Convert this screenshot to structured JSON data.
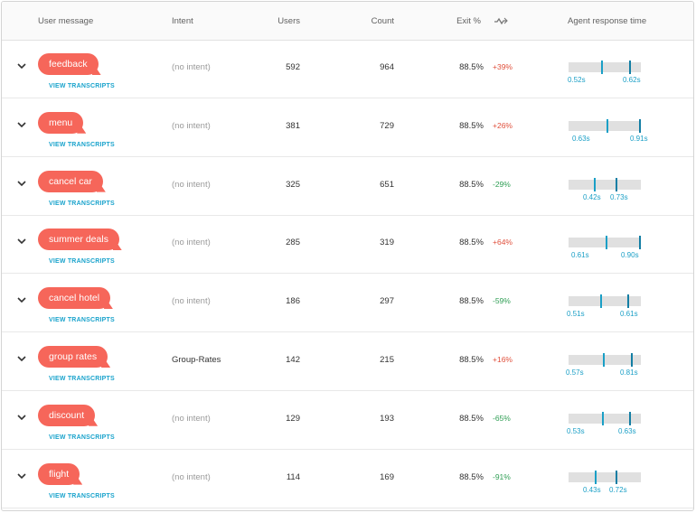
{
  "header": {
    "user_message": "User message",
    "intent": "Intent",
    "users": "Users",
    "count": "Count",
    "exit": "Exit %",
    "trend_icon": "trend-arrow-icon",
    "agent_response_time": "Agent response time"
  },
  "view_transcripts_label": "VIEW TRANSCRIPTS",
  "colors": {
    "bubble": "#f6665a",
    "link": "#1aa3cc",
    "positive_delta": "#e0503c",
    "negative_delta": "#2f9e54",
    "tick": "#1a9fc6"
  },
  "rows": [
    {
      "message": "feedback",
      "intent": "(no intent)",
      "users": "592",
      "count": "964",
      "exit": "88.5%",
      "delta": "+39%",
      "rt_low": "0.52s",
      "rt_high": "0.62s"
    },
    {
      "message": "menu",
      "intent": "(no intent)",
      "users": "381",
      "count": "729",
      "exit": "88.5%",
      "delta": "+26%",
      "rt_low": "0.63s",
      "rt_high": "0.91s"
    },
    {
      "message": "cancel car",
      "intent": "(no intent)",
      "users": "325",
      "count": "651",
      "exit": "88.5%",
      "delta": "-29%",
      "rt_low": "0.42s",
      "rt_high": "0.73s"
    },
    {
      "message": "summer deals",
      "intent": "(no intent)",
      "users": "285",
      "count": "319",
      "exit": "88.5%",
      "delta": "+64%",
      "rt_low": "0.61s",
      "rt_high": "0.90s"
    },
    {
      "message": "cancel hotel",
      "intent": "(no intent)",
      "users": "186",
      "count": "297",
      "exit": "88.5%",
      "delta": "-59%",
      "rt_low": "0.51s",
      "rt_high": "0.61s"
    },
    {
      "message": "group rates",
      "intent": "Group-Rates",
      "users": "142",
      "count": "215",
      "exit": "88.5%",
      "delta": "+16%",
      "rt_low": "0.57s",
      "rt_high": "0.81s"
    },
    {
      "message": "discount",
      "intent": "(no intent)",
      "users": "129",
      "count": "193",
      "exit": "88.5%",
      "delta": "-65%",
      "rt_low": "0.53s",
      "rt_high": "0.63s"
    },
    {
      "message": "flight",
      "intent": "(no intent)",
      "users": "114",
      "count": "169",
      "exit": "88.5%",
      "delta": "-91%",
      "rt_low": "0.43s",
      "rt_high": "0.72s"
    }
  ]
}
